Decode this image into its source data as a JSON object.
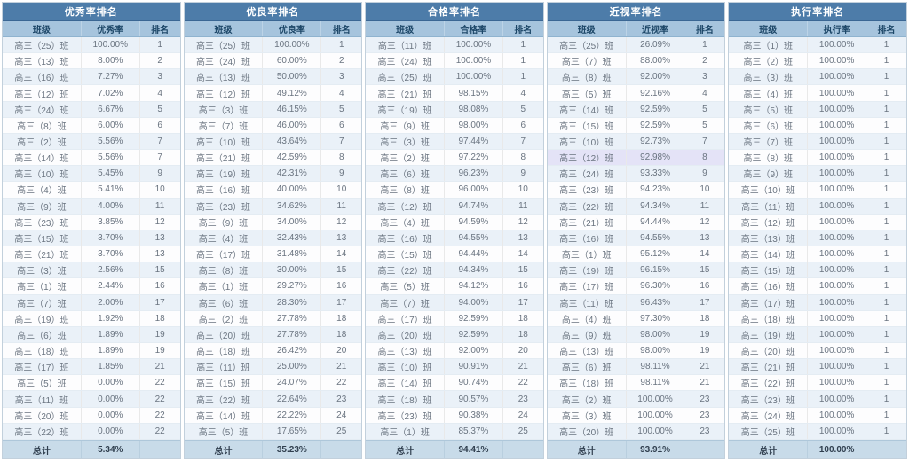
{
  "colors": {
    "title_bar": "#4d7ca9",
    "header_row": "#a6c4dd",
    "alt_row": "#eaf1f8",
    "total_row": "#c8dbe9",
    "highlight_row": "#e4e3f7"
  },
  "tables": [
    {
      "title": "优秀率排名",
      "columns": [
        "班级",
        "优秀率",
        "排名"
      ],
      "highlight_row": -1,
      "rows": [
        [
          "高三（25）班",
          "100.00%",
          "1"
        ],
        [
          "高三（13）班",
          "8.00%",
          "2"
        ],
        [
          "高三（16）班",
          "7.27%",
          "3"
        ],
        [
          "高三（12）班",
          "7.02%",
          "4"
        ],
        [
          "高三（24）班",
          "6.67%",
          "5"
        ],
        [
          "高三（8）班",
          "6.00%",
          "6"
        ],
        [
          "高三（2）班",
          "5.56%",
          "7"
        ],
        [
          "高三（14）班",
          "5.56%",
          "7"
        ],
        [
          "高三（10）班",
          "5.45%",
          "9"
        ],
        [
          "高三（4）班",
          "5.41%",
          "10"
        ],
        [
          "高三（9）班",
          "4.00%",
          "11"
        ],
        [
          "高三（23）班",
          "3.85%",
          "12"
        ],
        [
          "高三（15）班",
          "3.70%",
          "13"
        ],
        [
          "高三（21）班",
          "3.70%",
          "13"
        ],
        [
          "高三（3）班",
          "2.56%",
          "15"
        ],
        [
          "高三（1）班",
          "2.44%",
          "16"
        ],
        [
          "高三（7）班",
          "2.00%",
          "17"
        ],
        [
          "高三（19）班",
          "1.92%",
          "18"
        ],
        [
          "高三（6）班",
          "1.89%",
          "19"
        ],
        [
          "高三（18）班",
          "1.89%",
          "19"
        ],
        [
          "高三（17）班",
          "1.85%",
          "21"
        ],
        [
          "高三（5）班",
          "0.00%",
          "22"
        ],
        [
          "高三（11）班",
          "0.00%",
          "22"
        ],
        [
          "高三（20）班",
          "0.00%",
          "22"
        ],
        [
          "高三（22）班",
          "0.00%",
          "22"
        ]
      ],
      "total_label": "总计",
      "total_value": "5.34%"
    },
    {
      "title": "优良率排名",
      "columns": [
        "班级",
        "优良率",
        "排名"
      ],
      "highlight_row": -1,
      "rows": [
        [
          "高三（25）班",
          "100.00%",
          "1"
        ],
        [
          "高三（24）班",
          "60.00%",
          "2"
        ],
        [
          "高三（13）班",
          "50.00%",
          "3"
        ],
        [
          "高三（12）班",
          "49.12%",
          "4"
        ],
        [
          "高三（3）班",
          "46.15%",
          "5"
        ],
        [
          "高三（7）班",
          "46.00%",
          "6"
        ],
        [
          "高三（10）班",
          "43.64%",
          "7"
        ],
        [
          "高三（21）班",
          "42.59%",
          "8"
        ],
        [
          "高三（19）班",
          "42.31%",
          "9"
        ],
        [
          "高三（16）班",
          "40.00%",
          "10"
        ],
        [
          "高三（23）班",
          "34.62%",
          "11"
        ],
        [
          "高三（9）班",
          "34.00%",
          "12"
        ],
        [
          "高三（4）班",
          "32.43%",
          "13"
        ],
        [
          "高三（17）班",
          "31.48%",
          "14"
        ],
        [
          "高三（8）班",
          "30.00%",
          "15"
        ],
        [
          "高三（1）班",
          "29.27%",
          "16"
        ],
        [
          "高三（6）班",
          "28.30%",
          "17"
        ],
        [
          "高三（2）班",
          "27.78%",
          "18"
        ],
        [
          "高三（20）班",
          "27.78%",
          "18"
        ],
        [
          "高三（18）班",
          "26.42%",
          "20"
        ],
        [
          "高三（11）班",
          "25.00%",
          "21"
        ],
        [
          "高三（15）班",
          "24.07%",
          "22"
        ],
        [
          "高三（22）班",
          "22.64%",
          "23"
        ],
        [
          "高三（14）班",
          "22.22%",
          "24"
        ],
        [
          "高三（5）班",
          "17.65%",
          "25"
        ]
      ],
      "total_label": "总计",
      "total_value": "35.23%"
    },
    {
      "title": "合格率排名",
      "columns": [
        "班级",
        "合格率",
        "排名"
      ],
      "highlight_row": -1,
      "rows": [
        [
          "高三（11）班",
          "100.00%",
          "1"
        ],
        [
          "高三（24）班",
          "100.00%",
          "1"
        ],
        [
          "高三（25）班",
          "100.00%",
          "1"
        ],
        [
          "高三（21）班",
          "98.15%",
          "4"
        ],
        [
          "高三（19）班",
          "98.08%",
          "5"
        ],
        [
          "高三（9）班",
          "98.00%",
          "6"
        ],
        [
          "高三（3）班",
          "97.44%",
          "7"
        ],
        [
          "高三（2）班",
          "97.22%",
          "8"
        ],
        [
          "高三（6）班",
          "96.23%",
          "9"
        ],
        [
          "高三（8）班",
          "96.00%",
          "10"
        ],
        [
          "高三（12）班",
          "94.74%",
          "11"
        ],
        [
          "高三（4）班",
          "94.59%",
          "12"
        ],
        [
          "高三（16）班",
          "94.55%",
          "13"
        ],
        [
          "高三（15）班",
          "94.44%",
          "14"
        ],
        [
          "高三（22）班",
          "94.34%",
          "15"
        ],
        [
          "高三（5）班",
          "94.12%",
          "16"
        ],
        [
          "高三（7）班",
          "94.00%",
          "17"
        ],
        [
          "高三（17）班",
          "92.59%",
          "18"
        ],
        [
          "高三（20）班",
          "92.59%",
          "18"
        ],
        [
          "高三（13）班",
          "92.00%",
          "20"
        ],
        [
          "高三（10）班",
          "90.91%",
          "21"
        ],
        [
          "高三（14）班",
          "90.74%",
          "22"
        ],
        [
          "高三（18）班",
          "90.57%",
          "23"
        ],
        [
          "高三（23）班",
          "90.38%",
          "24"
        ],
        [
          "高三（1）班",
          "85.37%",
          "25"
        ]
      ],
      "total_label": "总计",
      "total_value": "94.41%"
    },
    {
      "title": "近视率排名",
      "columns": [
        "班级",
        "近视率",
        "排名"
      ],
      "highlight_row": 7,
      "rows": [
        [
          "高三（25）班",
          "26.09%",
          "1"
        ],
        [
          "高三（7）班",
          "88.00%",
          "2"
        ],
        [
          "高三（8）班",
          "92.00%",
          "3"
        ],
        [
          "高三（5）班",
          "92.16%",
          "4"
        ],
        [
          "高三（14）班",
          "92.59%",
          "5"
        ],
        [
          "高三（15）班",
          "92.59%",
          "5"
        ],
        [
          "高三（10）班",
          "92.73%",
          "7"
        ],
        [
          "高三（12）班",
          "92.98%",
          "8"
        ],
        [
          "高三（24）班",
          "93.33%",
          "9"
        ],
        [
          "高三（23）班",
          "94.23%",
          "10"
        ],
        [
          "高三（22）班",
          "94.34%",
          "11"
        ],
        [
          "高三（21）班",
          "94.44%",
          "12"
        ],
        [
          "高三（16）班",
          "94.55%",
          "13"
        ],
        [
          "高三（1）班",
          "95.12%",
          "14"
        ],
        [
          "高三（19）班",
          "96.15%",
          "15"
        ],
        [
          "高三（17）班",
          "96.30%",
          "16"
        ],
        [
          "高三（11）班",
          "96.43%",
          "17"
        ],
        [
          "高三（4）班",
          "97.30%",
          "18"
        ],
        [
          "高三（9）班",
          "98.00%",
          "19"
        ],
        [
          "高三（13）班",
          "98.00%",
          "19"
        ],
        [
          "高三（6）班",
          "98.11%",
          "21"
        ],
        [
          "高三（18）班",
          "98.11%",
          "21"
        ],
        [
          "高三（2）班",
          "100.00%",
          "23"
        ],
        [
          "高三（3）班",
          "100.00%",
          "23"
        ],
        [
          "高三（20）班",
          "100.00%",
          "23"
        ]
      ],
      "total_label": "总计",
      "total_value": "93.91%"
    },
    {
      "title": "执行率排名",
      "columns": [
        "班级",
        "执行率",
        "排名"
      ],
      "highlight_row": -1,
      "rows": [
        [
          "高三（1）班",
          "100.00%",
          "1"
        ],
        [
          "高三（2）班",
          "100.00%",
          "1"
        ],
        [
          "高三（3）班",
          "100.00%",
          "1"
        ],
        [
          "高三（4）班",
          "100.00%",
          "1"
        ],
        [
          "高三（5）班",
          "100.00%",
          "1"
        ],
        [
          "高三（6）班",
          "100.00%",
          "1"
        ],
        [
          "高三（7）班",
          "100.00%",
          "1"
        ],
        [
          "高三（8）班",
          "100.00%",
          "1"
        ],
        [
          "高三（9）班",
          "100.00%",
          "1"
        ],
        [
          "高三（10）班",
          "100.00%",
          "1"
        ],
        [
          "高三（11）班",
          "100.00%",
          "1"
        ],
        [
          "高三（12）班",
          "100.00%",
          "1"
        ],
        [
          "高三（13）班",
          "100.00%",
          "1"
        ],
        [
          "高三（14）班",
          "100.00%",
          "1"
        ],
        [
          "高三（15）班",
          "100.00%",
          "1"
        ],
        [
          "高三（16）班",
          "100.00%",
          "1"
        ],
        [
          "高三（17）班",
          "100.00%",
          "1"
        ],
        [
          "高三（18）班",
          "100.00%",
          "1"
        ],
        [
          "高三（19）班",
          "100.00%",
          "1"
        ],
        [
          "高三（20）班",
          "100.00%",
          "1"
        ],
        [
          "高三（21）班",
          "100.00%",
          "1"
        ],
        [
          "高三（22）班",
          "100.00%",
          "1"
        ],
        [
          "高三（23）班",
          "100.00%",
          "1"
        ],
        [
          "高三（24）班",
          "100.00%",
          "1"
        ],
        [
          "高三（25）班",
          "100.00%",
          "1"
        ]
      ],
      "total_label": "总计",
      "total_value": "100.00%"
    }
  ]
}
